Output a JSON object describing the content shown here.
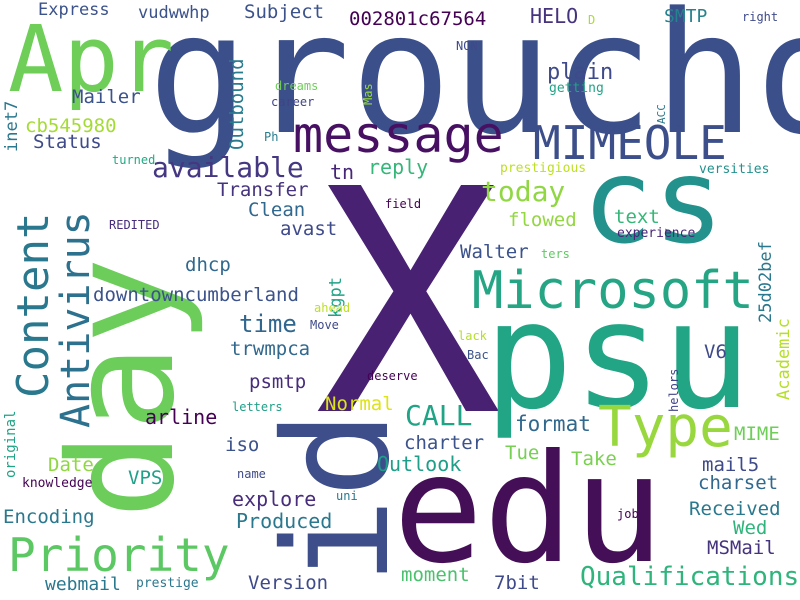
{
  "background": "#ffffff",
  "palette": [
    "#440154",
    "#3b528b",
    "#21918c",
    "#5ec962",
    "#fde725"
  ],
  "words": [
    {
      "text": "X",
      "color": "#482173"
    },
    {
      "text": "groucho",
      "color": "#3b4f8a"
    },
    {
      "text": "edu",
      "color": "#440f56"
    },
    {
      "text": "psu",
      "color": "#22a584"
    },
    {
      "text": "cs",
      "color": "#23918c"
    },
    {
      "text": "day",
      "color": "#6ccd5a"
    },
    {
      "text": "id",
      "color": "#3d4e8a"
    },
    {
      "text": "Apr",
      "color": "#6ece58"
    },
    {
      "text": "message",
      "color": "#471063"
    },
    {
      "text": "Type",
      "color": "#98d83e"
    },
    {
      "text": "Microsoft",
      "color": "#25a584"
    },
    {
      "text": "MIMEOLE",
      "color": "#3c4f8a"
    },
    {
      "text": "Priority",
      "color": "#5cc863"
    },
    {
      "text": "Content",
      "color": "#2a788e"
    },
    {
      "text": "Antivirus",
      "color": "#2c718e"
    },
    {
      "text": "Qualifications",
      "color": "#2fb47c"
    },
    {
      "text": "available",
      "color": "#453781"
    },
    {
      "text": "today",
      "color": "#90d743"
    },
    {
      "text": "time",
      "color": "#31678e"
    },
    {
      "text": "CALL",
      "color": "#20a486"
    },
    {
      "text": "Express",
      "color": "#3b528b"
    },
    {
      "text": "vudwwhp",
      "color": "#3b528b"
    },
    {
      "text": "Subject",
      "color": "#3b528b"
    },
    {
      "text": "002801c67564",
      "color": "#440154"
    },
    {
      "text": "HELO",
      "color": "#46337e"
    },
    {
      "text": "SMTP",
      "color": "#26828e"
    },
    {
      "text": "plain",
      "color": "#3e4a89"
    },
    {
      "text": "Mailer",
      "color": "#3b528b"
    },
    {
      "text": "Outbound",
      "color": "#287c8e"
    },
    {
      "text": "inet7",
      "color": "#2a788e"
    },
    {
      "text": "cb545980",
      "color": "#a5db36"
    },
    {
      "text": "Status",
      "color": "#3e4a89"
    },
    {
      "text": "tn",
      "color": "#482677"
    },
    {
      "text": "reply",
      "color": "#35b779"
    },
    {
      "text": "Transfer",
      "color": "#46337e"
    },
    {
      "text": "Clean",
      "color": "#31688e"
    },
    {
      "text": "avast",
      "color": "#3e4a89"
    },
    {
      "text": "flowed",
      "color": "#93d741"
    },
    {
      "text": "text",
      "color": "#35b779"
    },
    {
      "text": "experience",
      "color": "#482677"
    },
    {
      "text": "25d02bef",
      "color": "#2a788e"
    },
    {
      "text": "Academic",
      "color": "#b5de2b"
    },
    {
      "text": "Walter",
      "color": "#3b528b"
    },
    {
      "text": "dhcp",
      "color": "#31688e"
    },
    {
      "text": "downtowncumberland",
      "color": "#3b528b"
    },
    {
      "text": "kgpt",
      "color": "#20a486"
    },
    {
      "text": "trwmpca",
      "color": "#31688e"
    },
    {
      "text": "V6",
      "color": "#3e4a89"
    },
    {
      "text": "psmtp",
      "color": "#472c7a"
    },
    {
      "text": "arline",
      "color": "#440154"
    },
    {
      "text": "Normal",
      "color": "#dde318"
    },
    {
      "text": "format",
      "color": "#31688e"
    },
    {
      "text": "MIME",
      "color": "#6ece58"
    },
    {
      "text": "charter",
      "color": "#3b528b"
    },
    {
      "text": "iso",
      "color": "#3b528b"
    },
    {
      "text": "Outlook",
      "color": "#1f9e89"
    },
    {
      "text": "Tue",
      "color": "#75d054"
    },
    {
      "text": "Take",
      "color": "#7ad151"
    },
    {
      "text": "mail5",
      "color": "#3e4a89"
    },
    {
      "text": "charset",
      "color": "#31688e"
    },
    {
      "text": "Date",
      "color": "#8fd744"
    },
    {
      "text": "VPS",
      "color": "#1fa088"
    },
    {
      "text": "explore",
      "color": "#472d7b"
    },
    {
      "text": "Encoding",
      "color": "#2a788e"
    },
    {
      "text": "Produced",
      "color": "#2a788e"
    },
    {
      "text": "Received",
      "color": "#2a788e"
    },
    {
      "text": "Wed",
      "color": "#2fb47c"
    },
    {
      "text": "MSMail",
      "color": "#46337e"
    },
    {
      "text": "webmail",
      "color": "#2a788e"
    },
    {
      "text": "Version",
      "color": "#3e4a89"
    },
    {
      "text": "moment",
      "color": "#4ac16d"
    },
    {
      "text": "7bit",
      "color": "#3e4a89"
    },
    {
      "text": "original",
      "color": "#20a486"
    },
    {
      "text": "knowledge",
      "color": "#440154"
    },
    {
      "text": "prestige",
      "color": "#2a788e"
    },
    {
      "text": "Ph",
      "color": "#287d8e"
    },
    {
      "text": "dreams",
      "color": "#6ece58"
    },
    {
      "text": "career",
      "color": "#414487"
    },
    {
      "text": "Mas",
      "color": "#94d840"
    },
    {
      "text": "getting",
      "color": "#20a386"
    },
    {
      "text": "NON",
      "color": "#3e4a89"
    },
    {
      "text": "D",
      "color": "#aadc32"
    },
    {
      "text": "right",
      "color": "#3e4a89"
    },
    {
      "text": "ACC",
      "color": "#2a788e"
    },
    {
      "text": "turned",
      "color": "#22a884"
    },
    {
      "text": "prestigious",
      "color": "#bddf26"
    },
    {
      "text": "versities",
      "color": "#21918c"
    },
    {
      "text": "REDITED",
      "color": "#472d7b"
    },
    {
      "text": "field",
      "color": "#440154"
    },
    {
      "text": "ters",
      "color": "#5ec962"
    },
    {
      "text": "ahead",
      "color": "#bddf26"
    },
    {
      "text": "Move",
      "color": "#3e4a89"
    },
    {
      "text": "lack",
      "color": "#b5de2b"
    },
    {
      "text": "Bac",
      "color": "#3b528b"
    },
    {
      "text": "deserve",
      "color": "#440154"
    },
    {
      "text": "letters",
      "color": "#1fa088"
    },
    {
      "text": "helors",
      "color": "#414487"
    },
    {
      "text": "job",
      "color": "#440154"
    },
    {
      "text": "name",
      "color": "#3e4a89"
    },
    {
      "text": "uni",
      "color": "#2a788e"
    }
  ]
}
